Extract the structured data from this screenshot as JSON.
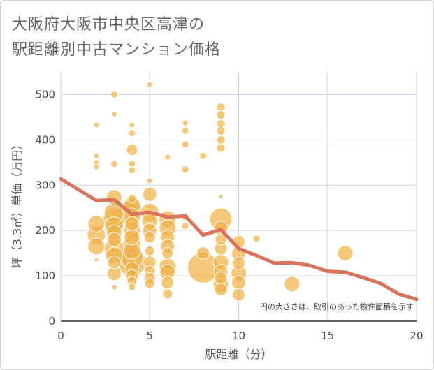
{
  "title_line1": "大阪府大阪市中央区高津の",
  "title_line2": "駅距離別中古マンション価格",
  "chart_data": {
    "type": "scatter",
    "title": "大阪府大阪市中央区高津の駅距離別中古マンション価格",
    "xlabel": "駅距離（分）",
    "ylabel": "坪（3.3㎡）単価（万円）",
    "xlim": [
      0,
      20
    ],
    "ylim": [
      0,
      550
    ],
    "xticks": [
      "0",
      "5",
      "10",
      "15",
      "20"
    ],
    "yticks": [
      "0",
      "100",
      "200",
      "300",
      "400",
      "500"
    ],
    "xtick_values": [
      0,
      5,
      10,
      15,
      20
    ],
    "ytick_values": [
      0,
      100,
      200,
      300,
      400,
      500
    ],
    "grid": true,
    "note": "円の大きさは、取引のあった物件面積を示す",
    "scatter_color": "#f0b245",
    "line_color": "#d9735c",
    "points": [
      {
        "x": 2,
        "y": 365,
        "r": 4
      },
      {
        "x": 2,
        "y": 350,
        "r": 4
      },
      {
        "x": 2,
        "y": 340,
        "r": 4
      },
      {
        "x": 2,
        "y": 433,
        "r": 4
      },
      {
        "x": 2,
        "y": 215,
        "r": 12
      },
      {
        "x": 2,
        "y": 190,
        "r": 13
      },
      {
        "x": 2,
        "y": 165,
        "r": 12
      },
      {
        "x": 2,
        "y": 135,
        "r": 3
      },
      {
        "x": 3,
        "y": 500,
        "r": 5
      },
      {
        "x": 3,
        "y": 457,
        "r": 4
      },
      {
        "x": 3,
        "y": 347,
        "r": 5
      },
      {
        "x": 3,
        "y": 273,
        "r": 11
      },
      {
        "x": 3,
        "y": 240,
        "r": 14
      },
      {
        "x": 3,
        "y": 225,
        "r": 16
      },
      {
        "x": 3,
        "y": 210,
        "r": 13
      },
      {
        "x": 3,
        "y": 195,
        "r": 11
      },
      {
        "x": 3,
        "y": 180,
        "r": 10
      },
      {
        "x": 3,
        "y": 160,
        "r": 14
      },
      {
        "x": 3,
        "y": 145,
        "r": 12
      },
      {
        "x": 3,
        "y": 130,
        "r": 9
      },
      {
        "x": 3,
        "y": 105,
        "r": 10
      },
      {
        "x": 3,
        "y": 75,
        "r": 4
      },
      {
        "x": 4,
        "y": 433,
        "r": 4
      },
      {
        "x": 4,
        "y": 415,
        "r": 5
      },
      {
        "x": 4,
        "y": 378,
        "r": 8
      },
      {
        "x": 4,
        "y": 347,
        "r": 5
      },
      {
        "x": 4,
        "y": 333,
        "r": 5
      },
      {
        "x": 4,
        "y": 270,
        "r": 6
      },
      {
        "x": 4,
        "y": 255,
        "r": 12
      },
      {
        "x": 4,
        "y": 245,
        "r": 14
      },
      {
        "x": 4,
        "y": 230,
        "r": 12
      },
      {
        "x": 4,
        "y": 215,
        "r": 10
      },
      {
        "x": 4,
        "y": 200,
        "r": 12
      },
      {
        "x": 4,
        "y": 185,
        "r": 11
      },
      {
        "x": 4,
        "y": 170,
        "r": 13
      },
      {
        "x": 4,
        "y": 155,
        "r": 12
      },
      {
        "x": 4,
        "y": 140,
        "r": 16
      },
      {
        "x": 4,
        "y": 130,
        "r": 20
      },
      {
        "x": 4,
        "y": 115,
        "r": 10
      },
      {
        "x": 4,
        "y": 100,
        "r": 9
      },
      {
        "x": 4,
        "y": 88,
        "r": 7
      },
      {
        "x": 4,
        "y": 75,
        "r": 5
      },
      {
        "x": 5,
        "y": 522,
        "r": 4
      },
      {
        "x": 5,
        "y": 310,
        "r": 4
      },
      {
        "x": 5,
        "y": 280,
        "r": 10
      },
      {
        "x": 5,
        "y": 240,
        "r": 13
      },
      {
        "x": 5,
        "y": 220,
        "r": 11
      },
      {
        "x": 5,
        "y": 200,
        "r": 10
      },
      {
        "x": 5,
        "y": 185,
        "r": 8
      },
      {
        "x": 5,
        "y": 155,
        "r": 7
      },
      {
        "x": 5,
        "y": 130,
        "r": 9
      },
      {
        "x": 5,
        "y": 110,
        "r": 8
      },
      {
        "x": 5,
        "y": 95,
        "r": 8
      },
      {
        "x": 5,
        "y": 83,
        "r": 7
      },
      {
        "x": 6,
        "y": 362,
        "r": 4
      },
      {
        "x": 6,
        "y": 225,
        "r": 12
      },
      {
        "x": 6,
        "y": 205,
        "r": 12
      },
      {
        "x": 6,
        "y": 185,
        "r": 10
      },
      {
        "x": 6,
        "y": 165,
        "r": 10
      },
      {
        "x": 6,
        "y": 150,
        "r": 8
      },
      {
        "x": 6,
        "y": 120,
        "r": 12
      },
      {
        "x": 6,
        "y": 108,
        "r": 11
      },
      {
        "x": 6,
        "y": 85,
        "r": 9
      },
      {
        "x": 6,
        "y": 60,
        "r": 7
      },
      {
        "x": 7,
        "y": 437,
        "r": 4
      },
      {
        "x": 7,
        "y": 420,
        "r": 5
      },
      {
        "x": 7,
        "y": 390,
        "r": 5
      },
      {
        "x": 7,
        "y": 335,
        "r": 5
      },
      {
        "x": 7,
        "y": 230,
        "r": 5
      },
      {
        "x": 7,
        "y": 210,
        "r": 5
      },
      {
        "x": 8,
        "y": 365,
        "r": 5
      },
      {
        "x": 8,
        "y": 150,
        "r": 9
      },
      {
        "x": 8,
        "y": 118,
        "r": 22
      },
      {
        "x": 9,
        "y": 472,
        "r": 6
      },
      {
        "x": 9,
        "y": 455,
        "r": 6
      },
      {
        "x": 9,
        "y": 435,
        "r": 6
      },
      {
        "x": 9,
        "y": 420,
        "r": 6
      },
      {
        "x": 9,
        "y": 400,
        "r": 6
      },
      {
        "x": 9,
        "y": 382,
        "r": 6
      },
      {
        "x": 9,
        "y": 275,
        "r": 3
      },
      {
        "x": 9,
        "y": 225,
        "r": 16
      },
      {
        "x": 9,
        "y": 205,
        "r": 10
      },
      {
        "x": 9,
        "y": 180,
        "r": 8
      },
      {
        "x": 9,
        "y": 160,
        "r": 9
      },
      {
        "x": 9,
        "y": 130,
        "r": 11
      },
      {
        "x": 9,
        "y": 110,
        "r": 10
      },
      {
        "x": 9,
        "y": 95,
        "r": 9
      },
      {
        "x": 9,
        "y": 80,
        "r": 11
      },
      {
        "x": 9,
        "y": 70,
        "r": 9
      },
      {
        "x": 10,
        "y": 175,
        "r": 9
      },
      {
        "x": 10,
        "y": 150,
        "r": 10
      },
      {
        "x": 10,
        "y": 128,
        "r": 9
      },
      {
        "x": 10,
        "y": 105,
        "r": 11
      },
      {
        "x": 10,
        "y": 85,
        "r": 10
      },
      {
        "x": 10,
        "y": 58,
        "r": 9
      },
      {
        "x": 11,
        "y": 182,
        "r": 5
      },
      {
        "x": 13,
        "y": 82,
        "r": 11
      },
      {
        "x": 16,
        "y": 150,
        "r": 11
      }
    ],
    "line": {
      "name": "",
      "x": [
        0,
        2,
        3,
        4,
        5,
        6,
        7,
        8,
        9,
        10,
        11,
        12,
        13,
        14,
        15,
        16,
        17,
        18,
        19,
        20
      ],
      "y": [
        314,
        266,
        268,
        236,
        240,
        230,
        232,
        190,
        202,
        160,
        145,
        128,
        129,
        123,
        110,
        108,
        96,
        83,
        60,
        48
      ]
    }
  }
}
